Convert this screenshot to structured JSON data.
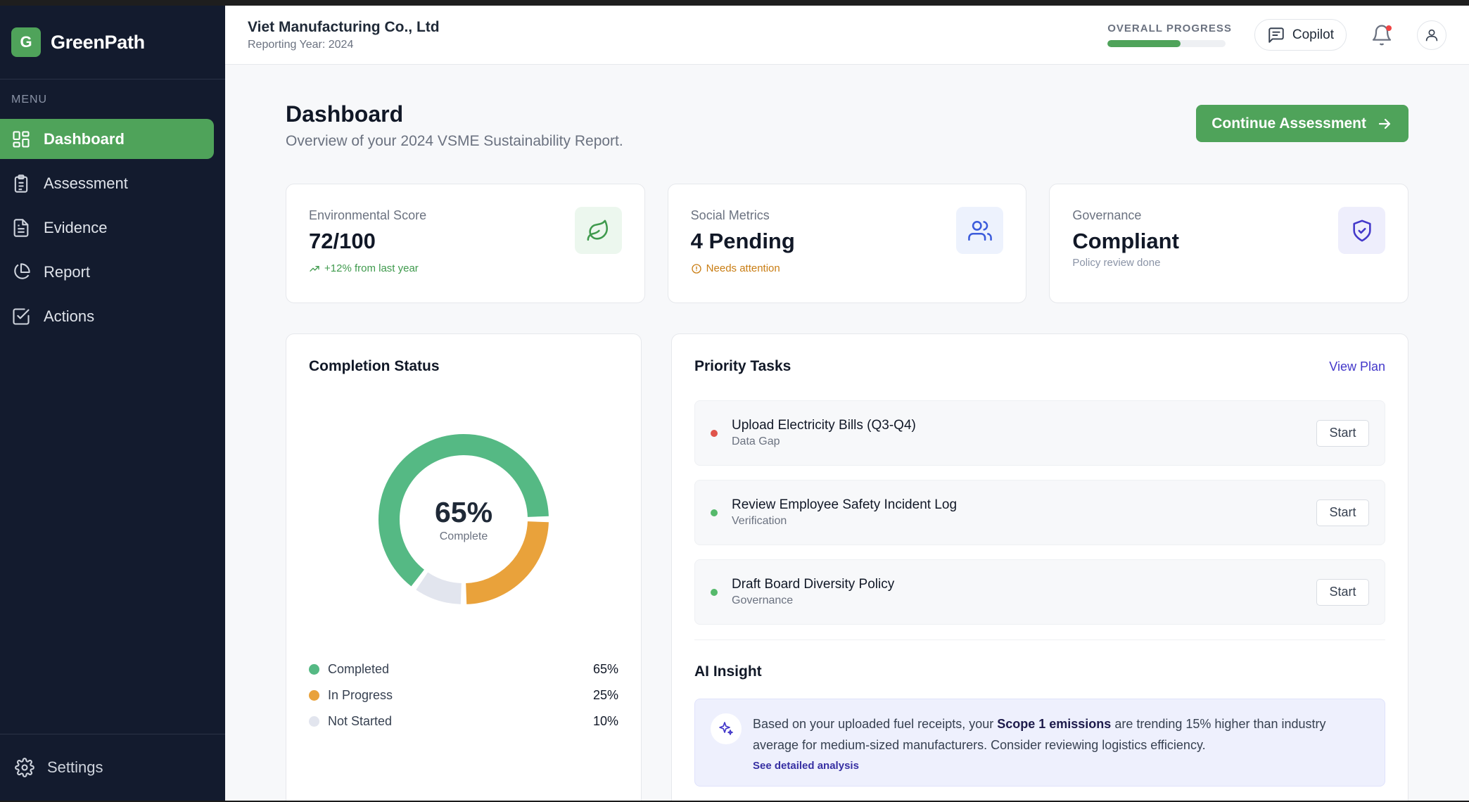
{
  "brand": {
    "logo_letter": "G",
    "name": "GreenPath"
  },
  "sidebar": {
    "menu_label": "MENU",
    "items": [
      {
        "label": "Dashboard",
        "icon": "dashboard-grid-icon",
        "active": true
      },
      {
        "label": "Assessment",
        "icon": "clipboard-icon",
        "active": false
      },
      {
        "label": "Evidence",
        "icon": "document-icon",
        "active": false
      },
      {
        "label": "Report",
        "icon": "pie-chart-icon",
        "active": false
      },
      {
        "label": "Actions",
        "icon": "check-square-icon",
        "active": false
      }
    ],
    "settings_label": "Settings"
  },
  "header": {
    "company": "Viet Manufacturing Co., Ltd",
    "reporting_year": "Reporting Year: 2024",
    "progress_label": "OVERALL PROGRESS",
    "progress_fraction": 0.62,
    "copilot_label": "Copilot",
    "has_notification": true
  },
  "page": {
    "title": "Dashboard",
    "subtitle": "Overview of your 2024 VSME Sustainability Report.",
    "cta_label": "Continue Assessment"
  },
  "stats": {
    "environmental": {
      "label": "Environmental Score",
      "value": "72/100",
      "note": "+12% from last year",
      "icon": "leaf-icon"
    },
    "social": {
      "label": "Social Metrics",
      "value": "4 Pending",
      "note": "Needs attention",
      "icon": "users-icon"
    },
    "governance": {
      "label": "Governance",
      "value": "Compliant",
      "note": "Policy review done",
      "icon": "shield-check-icon"
    }
  },
  "completion": {
    "title": "Completion Status",
    "center_value": "65%",
    "center_label": "Complete",
    "legend": [
      {
        "label": "Completed",
        "value": "65%",
        "color": "#55b984"
      },
      {
        "label": "In Progress",
        "value": "25%",
        "color": "#e9a23b"
      },
      {
        "label": "Not Started",
        "value": "10%",
        "color": "#e2e5ee"
      }
    ]
  },
  "tasks": {
    "title": "Priority Tasks",
    "view_plan": "View Plan",
    "items": [
      {
        "title": "Upload Electricity Bills (Q3-Q4)",
        "tag": "Data Gap",
        "color": "#e0544b",
        "action": "Start"
      },
      {
        "title": "Review Employee Safety Incident Log",
        "tag": "Verification",
        "color": "#55b96b",
        "action": "Start"
      },
      {
        "title": "Draft Board Diversity Policy",
        "tag": "Governance",
        "color": "#55b96b",
        "action": "Start"
      }
    ]
  },
  "insight": {
    "title": "AI Insight",
    "text_before": "Based on your uploaded fuel receipts, your ",
    "highlight": "Scope 1 emissions",
    "text_after": " are trending 15% higher than industry average for medium-sized manufacturers. Consider reviewing logistics efficiency.",
    "link": "See detailed analysis"
  }
}
